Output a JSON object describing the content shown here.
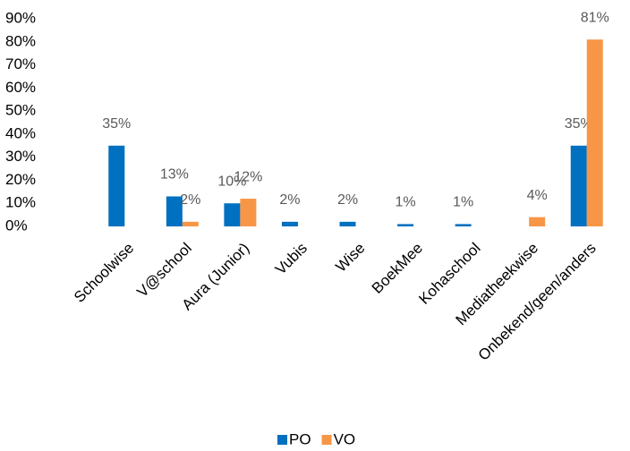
{
  "chart_data": {
    "type": "bar",
    "categories": [
      "Schoolwise",
      "V@school",
      "Aura (Junior)",
      "Vubis",
      "Wise",
      "BoekMee",
      "Kohaschool",
      "Mediatheekwise",
      "Onbekend/geen/anders"
    ],
    "series": [
      {
        "name": "PO",
        "color": "#0070c0",
        "values": [
          35,
          13,
          10,
          2,
          2,
          1,
          1,
          null,
          35
        ],
        "value_labels": [
          "35%",
          "13%",
          "10%",
          "2%",
          "2%",
          "1%",
          "1%",
          null,
          "35%"
        ]
      },
      {
        "name": "VO",
        "color": "#f79646",
        "values": [
          null,
          2,
          12,
          null,
          null,
          null,
          null,
          4,
          81
        ],
        "value_labels": [
          null,
          "2%",
          "12%",
          null,
          null,
          null,
          null,
          "4%",
          "81%"
        ]
      }
    ],
    "ylim": [
      0,
      90
    ],
    "yticks": [
      {
        "value": 0,
        "label": "0%"
      },
      {
        "value": 10,
        "label": "10%"
      },
      {
        "value": 20,
        "label": "20%"
      },
      {
        "value": 30,
        "label": "30%"
      },
      {
        "value": 40,
        "label": "40%"
      },
      {
        "value": 50,
        "label": "50%"
      },
      {
        "value": 60,
        "label": "60%"
      },
      {
        "value": 70,
        "label": "70%"
      },
      {
        "value": 80,
        "label": "80%"
      },
      {
        "value": 90,
        "label": "90%"
      }
    ],
    "grid": false,
    "legend": "bottom"
  }
}
